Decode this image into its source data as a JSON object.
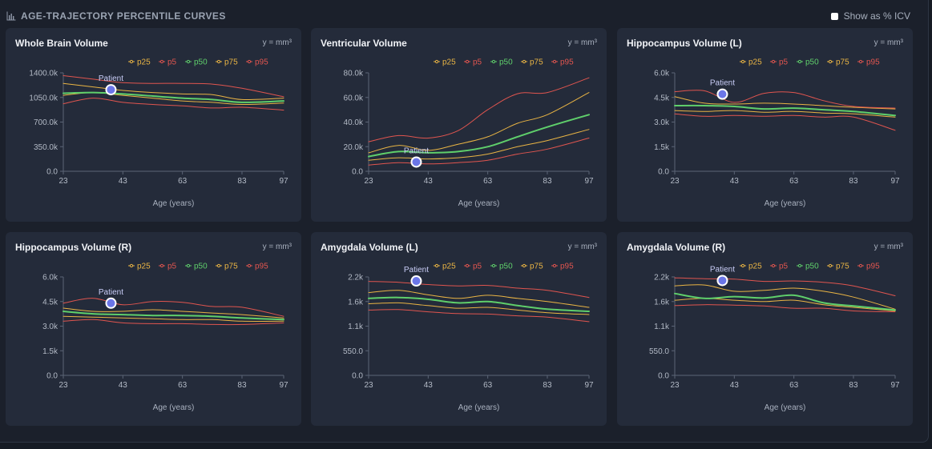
{
  "header": {
    "title": "AGE-TRAJECTORY PERCENTILE CURVES",
    "toggle_label": "Show as % ICV",
    "toggle_checked": false
  },
  "colors": {
    "p5": "#e0554f",
    "p25": "#e9b444",
    "p50": "#5fcf6b",
    "p75": "#e9b444",
    "p95": "#e0554f",
    "patient": "#6b76e8"
  },
  "legend_order": [
    "p25",
    "p5",
    "p50",
    "p75",
    "p95"
  ],
  "chart_data": [
    {
      "type": "line",
      "title": "Whole Brain Volume",
      "unit": "y = mm³",
      "xlabel": "Age (years)",
      "x_ticks": [
        23,
        43,
        63,
        83,
        97
      ],
      "y_ticks": [
        0,
        350000,
        700000,
        1050000,
        1400000
      ],
      "y_tick_labels": [
        "0.0",
        "350.0k",
        "700.0k",
        "1050.0k",
        "1400.0k"
      ],
      "xlim": [
        23,
        97
      ],
      "ylim": [
        0,
        1400000
      ],
      "x": [
        23,
        33,
        43,
        53,
        63,
        73,
        83,
        97
      ],
      "series": [
        {
          "name": "p5",
          "values": [
            960000,
            1040000,
            980000,
            950000,
            930000,
            900000,
            910000,
            870000
          ]
        },
        {
          "name": "p25",
          "values": [
            1080000,
            1120000,
            1080000,
            1040000,
            1000000,
            980000,
            950000,
            970000
          ]
        },
        {
          "name": "p50",
          "values": [
            1110000,
            1120000,
            1100000,
            1070000,
            1040000,
            1020000,
            980000,
            1000000
          ]
        },
        {
          "name": "p75",
          "values": [
            1250000,
            1200000,
            1150000,
            1120000,
            1100000,
            1090000,
            1020000,
            1040000
          ]
        },
        {
          "name": "p95",
          "values": [
            1360000,
            1310000,
            1260000,
            1250000,
            1250000,
            1240000,
            1180000,
            1060000
          ]
        }
      ],
      "patient": {
        "label": "Patient",
        "x": 39,
        "y": 1160000
      }
    },
    {
      "type": "line",
      "title": "Ventricular Volume",
      "unit": "y = mm³",
      "xlabel": "Age (years)",
      "x_ticks": [
        23,
        43,
        63,
        83,
        97
      ],
      "y_ticks": [
        0,
        20000,
        40000,
        60000,
        80000
      ],
      "y_tick_labels": [
        "0.0",
        "20.0k",
        "40.0k",
        "60.0k",
        "80.0k"
      ],
      "xlim": [
        23,
        97
      ],
      "ylim": [
        0,
        80000
      ],
      "x": [
        23,
        33,
        43,
        53,
        63,
        73,
        83,
        97
      ],
      "series": [
        {
          "name": "p5",
          "values": [
            5000,
            7000,
            6000,
            7000,
            9000,
            14000,
            18000,
            27000
          ]
        },
        {
          "name": "p25",
          "values": [
            9000,
            11000,
            10000,
            11000,
            14000,
            20000,
            25000,
            34000
          ]
        },
        {
          "name": "p50",
          "values": [
            12000,
            16000,
            15000,
            16000,
            20000,
            28000,
            36000,
            46000
          ]
        },
        {
          "name": "p75",
          "values": [
            15000,
            21000,
            17000,
            22000,
            28000,
            39000,
            46000,
            64000
          ]
        },
        {
          "name": "p95",
          "values": [
            24000,
            29000,
            27000,
            33000,
            50000,
            63000,
            64000,
            76000
          ]
        }
      ],
      "patient": {
        "label": "Patient",
        "x": 39,
        "y": 7500
      }
    },
    {
      "type": "line",
      "title": "Hippocampus Volume (L)",
      "unit": "y = mm³",
      "xlabel": "Age (years)",
      "x_ticks": [
        23,
        43,
        63,
        83,
        97
      ],
      "y_ticks": [
        0,
        1500,
        3000,
        4500,
        6000
      ],
      "y_tick_labels": [
        "0.0",
        "1.5k",
        "3.0k",
        "4.5k",
        "6.0k"
      ],
      "xlim": [
        23,
        97
      ],
      "ylim": [
        0,
        6000
      ],
      "x": [
        23,
        33,
        43,
        53,
        63,
        73,
        83,
        97
      ],
      "series": [
        {
          "name": "p5",
          "values": [
            3500,
            3350,
            3400,
            3350,
            3400,
            3300,
            3300,
            2500
          ]
        },
        {
          "name": "p25",
          "values": [
            3700,
            3650,
            3700,
            3600,
            3650,
            3550,
            3500,
            3300
          ]
        },
        {
          "name": "p50",
          "values": [
            4000,
            4000,
            3950,
            3800,
            3850,
            3750,
            3650,
            3400
          ]
        },
        {
          "name": "p75",
          "values": [
            4550,
            4150,
            4100,
            4150,
            4100,
            4000,
            3900,
            3800
          ]
        },
        {
          "name": "p95",
          "values": [
            4850,
            4900,
            4200,
            4750,
            4800,
            4300,
            3950,
            3850
          ]
        }
      ],
      "patient": {
        "label": "Patient",
        "x": 39,
        "y": 4700
      }
    },
    {
      "type": "line",
      "title": "Hippocampus Volume (R)",
      "unit": "y = mm³",
      "xlabel": "Age (years)",
      "x_ticks": [
        23,
        43,
        63,
        83,
        97
      ],
      "y_ticks": [
        0,
        1500,
        3000,
        4500,
        6000
      ],
      "y_tick_labels": [
        "0.0",
        "1.5k",
        "3.0k",
        "4.5k",
        "6.0k"
      ],
      "xlim": [
        23,
        97
      ],
      "ylim": [
        0,
        6000
      ],
      "x": [
        23,
        33,
        43,
        53,
        63,
        73,
        83,
        97
      ],
      "series": [
        {
          "name": "p5",
          "values": [
            3300,
            3400,
            3200,
            3150,
            3150,
            3100,
            3100,
            3200
          ]
        },
        {
          "name": "p25",
          "values": [
            3600,
            3550,
            3500,
            3450,
            3400,
            3400,
            3300,
            3300
          ]
        },
        {
          "name": "p50",
          "values": [
            3900,
            3750,
            3700,
            3650,
            3650,
            3600,
            3500,
            3400
          ]
        },
        {
          "name": "p75",
          "values": [
            4100,
            3900,
            3900,
            4000,
            3900,
            3800,
            3700,
            3500
          ]
        },
        {
          "name": "p95",
          "values": [
            4400,
            4700,
            4300,
            4500,
            4450,
            4200,
            4150,
            3600
          ]
        }
      ],
      "patient": {
        "label": "Patient",
        "x": 39,
        "y": 4400
      }
    },
    {
      "type": "line",
      "title": "Amygdala Volume (L)",
      "unit": "y = mm³",
      "xlabel": "Age (years)",
      "x_ticks": [
        23,
        43,
        63,
        83,
        97
      ],
      "y_ticks": [
        0,
        550,
        1100,
        1650,
        2200
      ],
      "y_tick_labels": [
        "0.0",
        "550.0",
        "1.1k",
        "1.6k",
        "2.2k"
      ],
      "xlim": [
        23,
        97
      ],
      "ylim": [
        0,
        2200
      ],
      "x": [
        23,
        33,
        43,
        53,
        63,
        73,
        83,
        97
      ],
      "series": [
        {
          "name": "p5",
          "values": [
            1460,
            1470,
            1420,
            1380,
            1370,
            1330,
            1300,
            1200
          ]
        },
        {
          "name": "p25",
          "values": [
            1600,
            1620,
            1560,
            1500,
            1520,
            1460,
            1400,
            1360
          ]
        },
        {
          "name": "p50",
          "values": [
            1720,
            1740,
            1700,
            1620,
            1650,
            1560,
            1480,
            1430
          ]
        },
        {
          "name": "p75",
          "values": [
            1850,
            1900,
            1800,
            1720,
            1790,
            1720,
            1650,
            1520
          ]
        },
        {
          "name": "p95",
          "values": [
            2100,
            2080,
            2030,
            2000,
            2010,
            1950,
            1900,
            1740
          ]
        }
      ],
      "patient": {
        "label": "Patient",
        "x": 39,
        "y": 2110
      }
    },
    {
      "type": "line",
      "title": "Amygdala Volume (R)",
      "unit": "y = mm³",
      "xlabel": "Age (years)",
      "x_ticks": [
        23,
        43,
        63,
        83,
        97
      ],
      "y_ticks": [
        0,
        550,
        1100,
        1650,
        2200
      ],
      "y_tick_labels": [
        "0.0",
        "550.0",
        "1.1k",
        "1.6k",
        "2.2k"
      ],
      "xlim": [
        23,
        97
      ],
      "ylim": [
        0,
        2200
      ],
      "x": [
        23,
        33,
        43,
        53,
        63,
        73,
        83,
        97
      ],
      "series": [
        {
          "name": "p5",
          "values": [
            1560,
            1580,
            1570,
            1550,
            1500,
            1500,
            1440,
            1420
          ]
        },
        {
          "name": "p25",
          "values": [
            1680,
            1720,
            1680,
            1650,
            1680,
            1580,
            1520,
            1440
          ]
        },
        {
          "name": "p50",
          "values": [
            1830,
            1720,
            1760,
            1730,
            1790,
            1620,
            1550,
            1460
          ]
        },
        {
          "name": "p75",
          "values": [
            2000,
            2020,
            1880,
            1900,
            1950,
            1880,
            1750,
            1480
          ]
        },
        {
          "name": "p95",
          "values": [
            2180,
            2160,
            2150,
            2100,
            2110,
            2080,
            2000,
            1780
          ]
        }
      ],
      "patient": {
        "label": "Patient",
        "x": 39,
        "y": 2120
      }
    }
  ]
}
